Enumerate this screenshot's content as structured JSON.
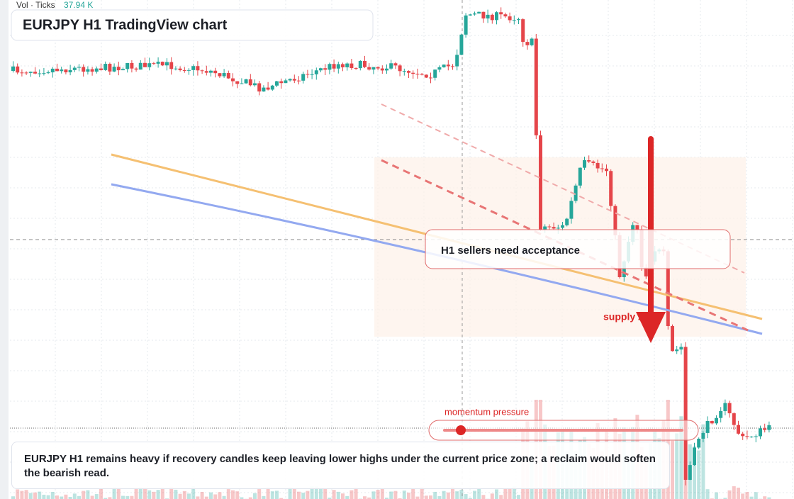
{
  "header": {
    "volume_label": "Vol · Ticks",
    "volume_value": "37.94 K",
    "title": "EURJPY H1 TradingView chart"
  },
  "annotations": {
    "callout": "H1 sellers need acceptance",
    "zone_label": "supply zone",
    "gauge_label": "momentum pressure"
  },
  "caption": "EURJPY H1 remains heavy if recovery candles keep leaving lower highs under the current price zone; a reclaim would soften the bearish read."
}
